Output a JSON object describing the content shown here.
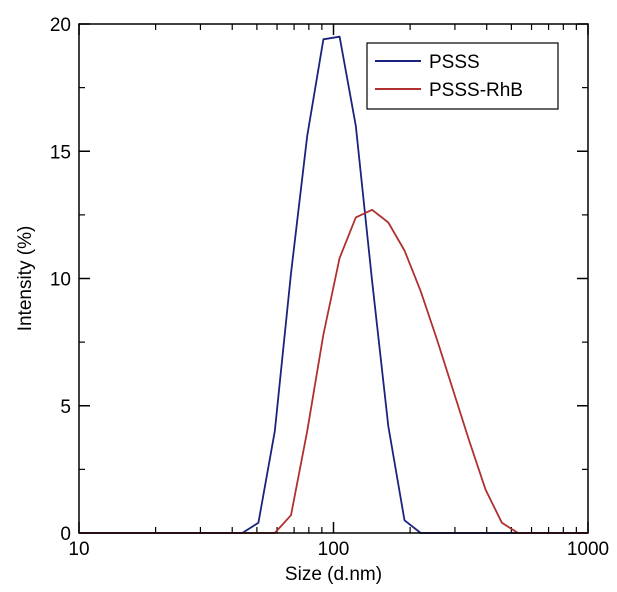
{
  "chart_data": {
    "type": "line",
    "title": "",
    "xlabel": "Size (d.nm)",
    "ylabel": "Intensity (%)",
    "x_scale": "log",
    "xlim": [
      10,
      1000
    ],
    "ylim": [
      0,
      20
    ],
    "x_ticks": [
      10,
      100,
      1000
    ],
    "x_tick_labels": [
      "10",
      "100",
      "1000"
    ],
    "y_ticks": [
      0,
      5,
      10,
      15,
      20
    ],
    "y_tick_labels": [
      "0",
      "5",
      "10",
      "15",
      "20"
    ],
    "grid": false,
    "legend": {
      "position": "top-right"
    },
    "series": [
      {
        "name": "PSSS",
        "color": "#1a237e",
        "x": [
          10,
          43.8,
          50.7,
          58.8,
          68.1,
          78.8,
          91.3,
          105.7,
          122.4,
          141.8,
          164.2,
          190.1,
          220.2,
          1000
        ],
        "y": [
          0,
          0,
          0.4,
          4.0,
          10.2,
          15.6,
          19.4,
          19.5,
          16.0,
          9.9,
          4.2,
          0.5,
          0,
          0
        ]
      },
      {
        "name": "PSSS-RhB",
        "color": "#b03030",
        "x": [
          10,
          58.8,
          68.1,
          78.8,
          91.3,
          105.7,
          122.4,
          141.8,
          164.2,
          190.1,
          220.2,
          255.0,
          295.3,
          342.0,
          396.1,
          458.7,
          531.2,
          1000
        ],
        "y": [
          0,
          0,
          0.7,
          4.0,
          7.8,
          10.8,
          12.4,
          12.7,
          12.2,
          11.1,
          9.5,
          7.6,
          5.6,
          3.6,
          1.7,
          0.4,
          0,
          0
        ]
      }
    ]
  }
}
